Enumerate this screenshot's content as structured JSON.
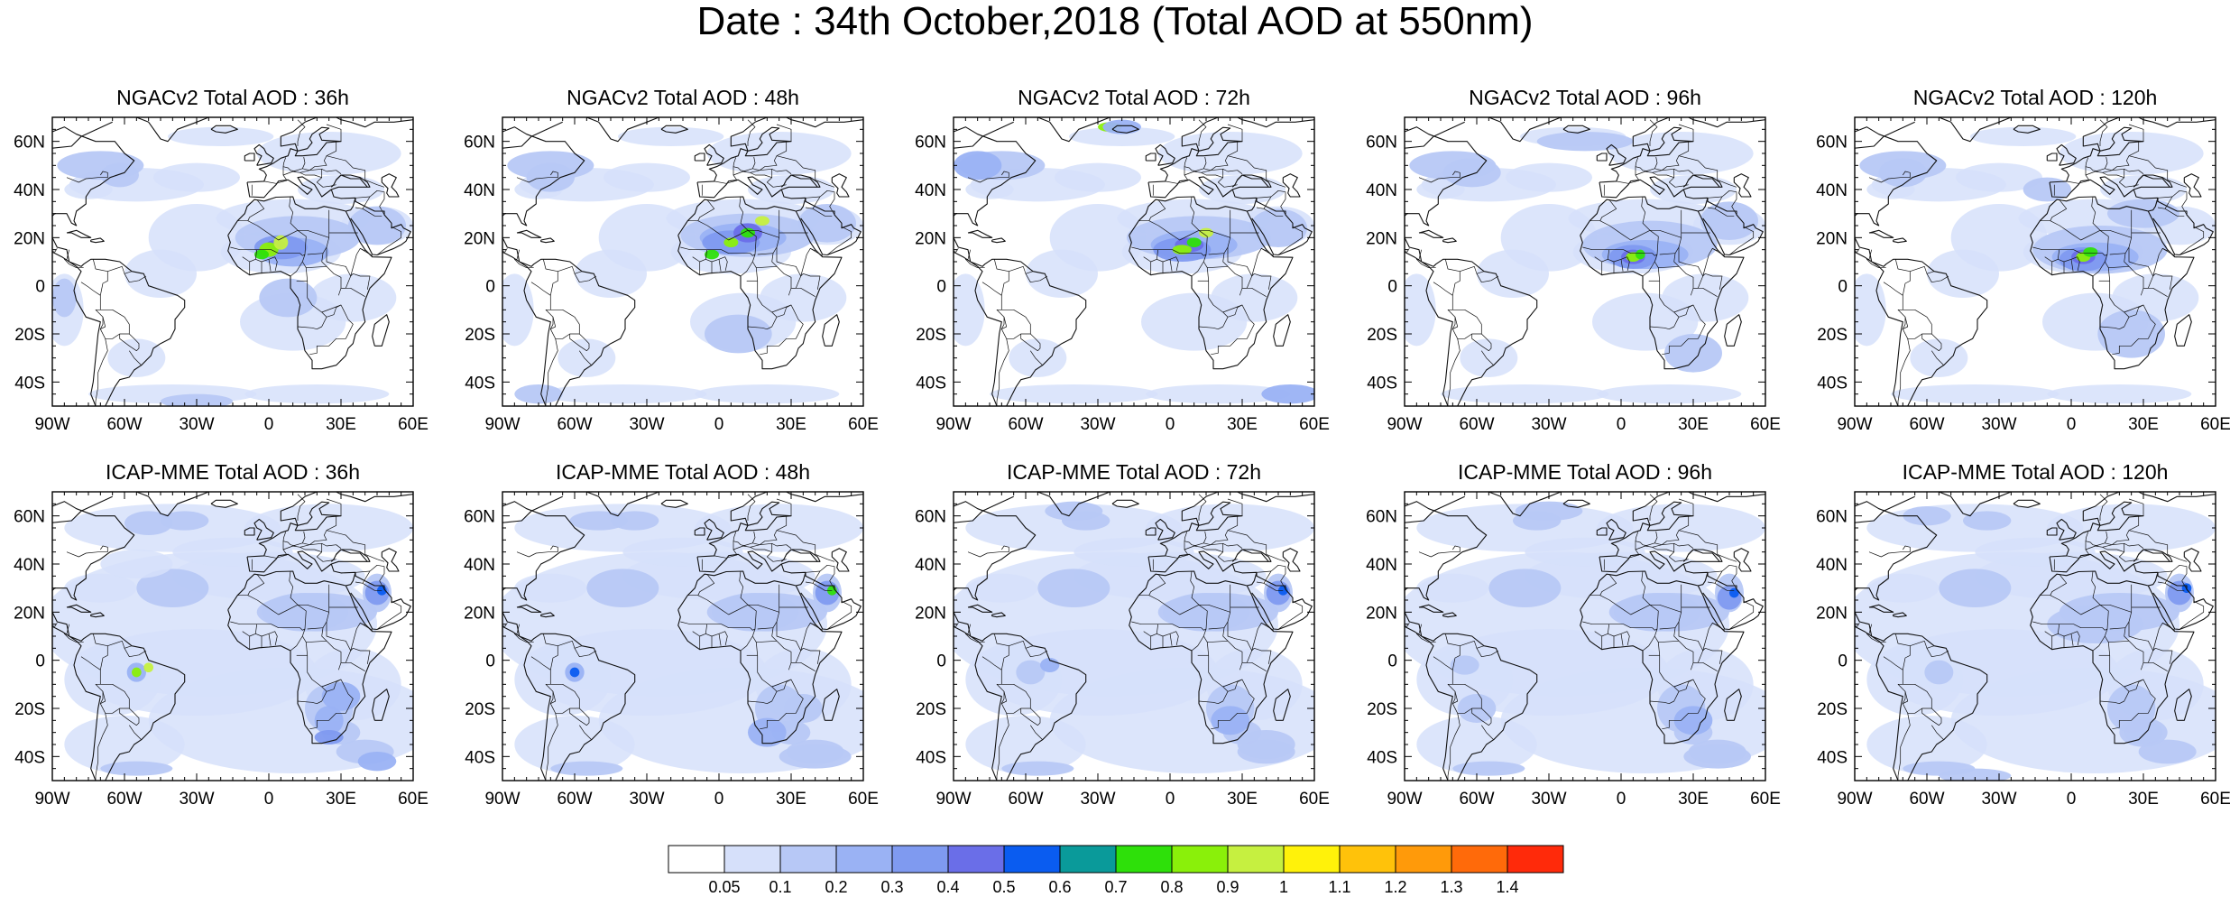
{
  "title": "Date : 34th October,2018 (Total AOD at 550nm)",
  "lat_labels": [
    "60N",
    "40N",
    "20N",
    "0",
    "20S",
    "40S"
  ],
  "lon_labels": [
    "90W",
    "60W",
    "30W",
    "0",
    "30E",
    "60E"
  ],
  "panels": [
    {
      "title": "NGACv2 Total AOD : 36h"
    },
    {
      "title": "NGACv2 Total AOD : 48h"
    },
    {
      "title": "NGACv2 Total AOD : 72h"
    },
    {
      "title": "NGACv2 Total AOD : 96h"
    },
    {
      "title": "NGACv2 Total AOD : 120h"
    },
    {
      "title": "ICAP-MME Total AOD : 36h"
    },
    {
      "title": "ICAP-MME Total AOD : 48h"
    },
    {
      "title": "ICAP-MME Total AOD : 72h"
    },
    {
      "title": "ICAP-MME Total AOD : 96h"
    },
    {
      "title": "ICAP-MME Total AOD : 120h"
    }
  ],
  "colorbar": {
    "labels": [
      "0.05",
      "0.1",
      "0.2",
      "0.3",
      "0.4",
      "0.5",
      "0.6",
      "0.7",
      "0.8",
      "0.9",
      "1",
      "1.1",
      "1.2",
      "1.3",
      "1.4"
    ],
    "colors": [
      "#ffffff",
      "#d6e0fa",
      "#b7c8f6",
      "#9ab2f4",
      "#7f9af0",
      "#6a6ee8",
      "#0a5cf0",
      "#0a9a9a",
      "#2ee00a",
      "#8af00a",
      "#c6f040",
      "#fff20a",
      "#ffc20a",
      "#ff9a0a",
      "#ff6a0a",
      "#ff2a0a"
    ]
  }
}
